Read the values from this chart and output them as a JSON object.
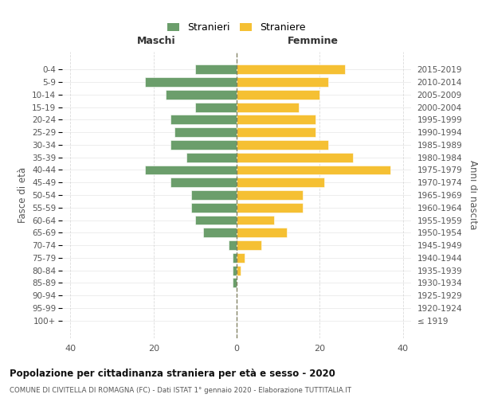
{
  "age_groups": [
    "100+",
    "95-99",
    "90-94",
    "85-89",
    "80-84",
    "75-79",
    "70-74",
    "65-69",
    "60-64",
    "55-59",
    "50-54",
    "45-49",
    "40-44",
    "35-39",
    "30-34",
    "25-29",
    "20-24",
    "15-19",
    "10-14",
    "5-9",
    "0-4"
  ],
  "birth_years": [
    "≤ 1919",
    "1920-1924",
    "1925-1929",
    "1930-1934",
    "1935-1939",
    "1940-1944",
    "1945-1949",
    "1950-1954",
    "1955-1959",
    "1960-1964",
    "1965-1969",
    "1970-1974",
    "1975-1979",
    "1980-1984",
    "1985-1989",
    "1990-1994",
    "1995-1999",
    "2000-2004",
    "2005-2009",
    "2010-2014",
    "2015-2019"
  ],
  "males": [
    0,
    0,
    0,
    1,
    1,
    1,
    2,
    8,
    10,
    11,
    11,
    16,
    22,
    12,
    16,
    15,
    16,
    10,
    17,
    22,
    10
  ],
  "females": [
    0,
    0,
    0,
    0,
    1,
    2,
    6,
    12,
    9,
    16,
    16,
    21,
    37,
    28,
    22,
    19,
    19,
    15,
    20,
    22,
    26
  ],
  "male_color": "#6b9e6b",
  "female_color": "#f5c033",
  "grid_color": "#cccccc",
  "title": "Popolazione per cittadinanza straniera per età e sesso - 2020",
  "subtitle": "COMUNE DI CIVITELLA DI ROMAGNA (FC) - Dati ISTAT 1° gennaio 2020 - Elaborazione TUTTITALIA.IT",
  "ylabel_left": "Fasce di età",
  "ylabel_right": "Anni di nascita",
  "header_left": "Maschi",
  "header_right": "Femmine",
  "legend_stranieri": "Stranieri",
  "legend_straniere": "Straniere",
  "xlim": 42
}
